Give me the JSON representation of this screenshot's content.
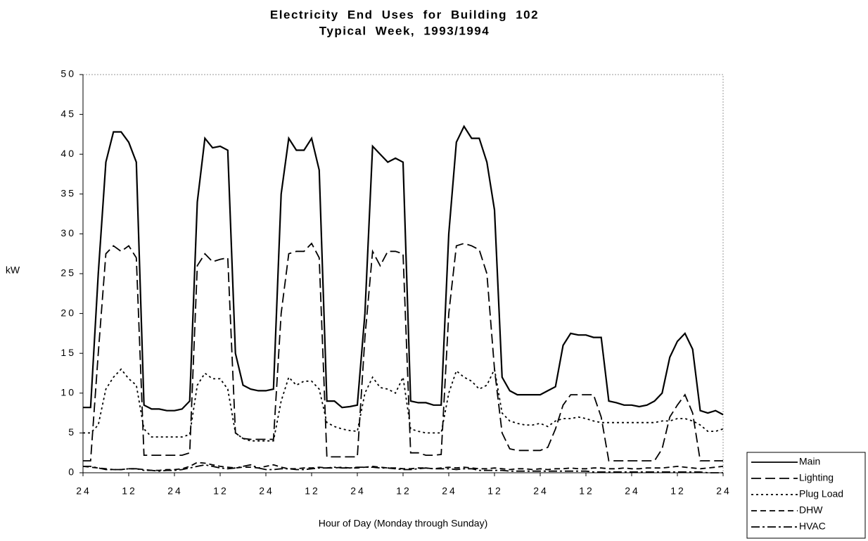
{
  "chart_data": {
    "type": "line",
    "title": "Electricity End Uses for Building 102",
    "subtitle": "Typical Week, 1993/1994",
    "x_label": "Hour of Day (Monday through Sunday)",
    "y_label": "kW",
    "x": [
      0,
      2,
      4,
      6,
      8,
      10,
      12,
      14,
      16,
      18,
      20,
      22,
      24,
      26,
      28,
      30,
      32,
      34,
      36,
      38,
      40,
      42,
      44,
      46,
      48,
      50,
      52,
      54,
      56,
      58,
      60,
      62,
      64,
      66,
      68,
      70,
      72,
      74,
      76,
      78,
      80,
      82,
      84,
      86,
      88,
      90,
      92,
      94,
      96,
      98,
      100,
      102,
      104,
      106,
      108,
      110,
      112,
      114,
      116,
      118,
      120,
      122,
      124,
      126,
      128,
      130,
      132,
      134,
      136,
      138,
      140,
      142,
      144,
      146,
      148,
      150,
      152,
      154,
      156,
      158,
      160,
      162,
      164,
      166,
      168
    ],
    "xlim": [
      0,
      168
    ],
    "xticks": [
      {
        "value": 0,
        "label": "24"
      },
      12,
      24,
      {
        "value": 36,
        "label": "12"
      },
      {
        "value": 48,
        "label": "24"
      },
      {
        "value": 60,
        "label": "12"
      },
      {
        "value": 72,
        "label": "24"
      },
      {
        "value": 84,
        "label": "12"
      },
      {
        "value": 96,
        "label": "24"
      },
      {
        "value": 108,
        "label": "12"
      },
      {
        "value": 120,
        "label": "24"
      },
      {
        "value": 132,
        "label": "12"
      },
      {
        "value": 144,
        "label": "24"
      },
      {
        "value": 156,
        "label": "12"
      },
      {
        "value": 168,
        "label": "24"
      }
    ],
    "ylim": [
      0,
      50
    ],
    "yticks": [
      0,
      5,
      10,
      15,
      20,
      25,
      30,
      35,
      40,
      45,
      50
    ],
    "legend": "lower right",
    "series": [
      {
        "name": "Main",
        "color": "#000000",
        "line_style": "solid",
        "values": [
          8.2,
          8.2,
          25,
          39,
          42.8,
          42.8,
          41.5,
          39,
          8.5,
          8,
          8,
          7.8,
          7.8,
          8,
          9,
          34,
          42,
          40.8,
          41,
          40.5,
          15,
          11,
          10.5,
          10.3,
          10.3,
          10.5,
          35,
          42,
          40.5,
          40.5,
          42,
          38,
          9,
          9,
          8.2,
          8.3,
          8.5,
          20,
          41,
          40,
          39,
          39.5,
          39,
          9,
          8.8,
          8.8,
          8.5,
          8.5,
          30,
          41.5,
          43.5,
          42,
          42,
          39,
          33,
          12,
          10.3,
          9.8,
          9.8,
          9.8,
          9.8,
          10.3,
          10.8,
          16,
          17.5,
          17.3,
          17.3,
          17,
          17,
          9,
          8.8,
          8.5,
          8.5,
          8.3,
          8.5,
          9,
          10,
          14.5,
          16.5,
          17.5,
          15.5,
          7.8,
          7.5,
          7.8,
          7.3
        ]
      },
      {
        "name": "Lighting",
        "color": "#000000",
        "line_style": "longdash",
        "values": [
          1.5,
          1.5,
          15,
          27.5,
          28.5,
          27.8,
          28.5,
          27,
          2.2,
          2.2,
          2.2,
          2.2,
          2.2,
          2.2,
          2.5,
          26,
          27.5,
          26.5,
          26.8,
          27,
          5,
          4.3,
          4.2,
          4.2,
          4.2,
          4.2,
          20,
          27.5,
          27.8,
          27.8,
          28.8,
          27,
          2,
          2,
          2,
          2,
          2,
          17,
          27.8,
          26,
          27.8,
          27.8,
          27.5,
          2.5,
          2.5,
          2.2,
          2.2,
          2.3,
          20,
          28.5,
          28.8,
          28.5,
          28,
          25,
          13,
          5,
          3,
          2.8,
          2.8,
          2.8,
          2.8,
          3.2,
          5.5,
          8.5,
          9.8,
          9.8,
          9.8,
          9.8,
          7,
          1.5,
          1.5,
          1.5,
          1.5,
          1.5,
          1.5,
          1.5,
          3,
          7,
          8.5,
          9.8,
          7.5,
          1.5,
          1.5,
          1.5,
          1.5
        ]
      },
      {
        "name": "Plug Load",
        "color": "#000000",
        "line_style": "dot",
        "values": [
          5,
          5,
          6,
          10.5,
          12,
          13,
          11.8,
          11,
          5.5,
          4.5,
          4.5,
          4.5,
          4.5,
          4.5,
          4.8,
          11,
          12.5,
          11.8,
          11.8,
          10.5,
          5,
          4.3,
          4,
          4,
          4,
          4,
          9,
          12,
          11,
          11.5,
          11.5,
          10.5,
          6.3,
          5.8,
          5.5,
          5.3,
          5.2,
          10,
          12,
          10.7,
          10.5,
          10,
          12,
          5.5,
          5.2,
          5,
          5,
          5,
          10,
          12.8,
          12,
          11.5,
          10.5,
          11,
          13,
          7.5,
          6.5,
          6.2,
          6,
          6,
          6.2,
          5.8,
          6.5,
          6.8,
          6.8,
          7,
          6.8,
          6.5,
          6.3,
          6.3,
          6.3,
          6.3,
          6.3,
          6.3,
          6.3,
          6.3,
          6.5,
          6.5,
          6.8,
          6.8,
          6.5,
          6,
          5.2,
          5.2,
          5.5
        ]
      },
      {
        "name": "DHW",
        "color": "#000000",
        "line_style": "dash",
        "values": [
          0.8,
          0.7,
          0.6,
          0.5,
          0.4,
          0.4,
          0.5,
          0.5,
          0.4,
          0.3,
          0.3,
          0.4,
          0.4,
          0.5,
          0.8,
          1.3,
          1.2,
          1.0,
          0.8,
          0.7,
          0.6,
          0.7,
          0.7,
          0.6,
          0.8,
          1.0,
          0.7,
          0.5,
          0.5,
          0.6,
          0.6,
          0.7,
          0.6,
          0.6,
          0.7,
          0.6,
          0.6,
          0.7,
          0.8,
          0.7,
          0.6,
          0.6,
          0.5,
          0.5,
          0.6,
          0.6,
          0.5,
          0.6,
          0.7,
          0.6,
          0.7,
          0.6,
          0.5,
          0.5,
          0.6,
          0.5,
          0.4,
          0.5,
          0.5,
          0.4,
          0.5,
          0.4,
          0.5,
          0.5,
          0.6,
          0.5,
          0.5,
          0.6,
          0.6,
          0.5,
          0.5,
          0.6,
          0.5,
          0.5,
          0.6,
          0.6,
          0.6,
          0.7,
          0.8,
          0.7,
          0.6,
          0.5,
          0.6,
          0.7,
          0.8
        ]
      },
      {
        "name": "HVAC",
        "color": "#000000",
        "line_style": "dashdot",
        "values": [
          0.8,
          0.8,
          0.6,
          0.4,
          0.4,
          0.4,
          0.5,
          0.5,
          0.3,
          0.3,
          0.2,
          0.3,
          0.3,
          0.4,
          0.6,
          0.8,
          1.0,
          0.8,
          0.6,
          0.5,
          0.6,
          0.8,
          1.0,
          0.6,
          0.4,
          0.4,
          0.5,
          0.5,
          0.4,
          0.4,
          0.5,
          0.6,
          0.6,
          0.7,
          0.6,
          0.6,
          0.7,
          0.7,
          0.7,
          0.6,
          0.6,
          0.5,
          0.4,
          0.4,
          0.5,
          0.6,
          0.5,
          0.5,
          0.5,
          0.4,
          0.5,
          0.5,
          0.3,
          0.3,
          0.3,
          0.3,
          0.2,
          0.2,
          0.2,
          0.2,
          0.2,
          0.2,
          0.2,
          0.2,
          0.2,
          0.2,
          0.2,
          0.1,
          0.1,
          0.1,
          0.1,
          0.1,
          0.1,
          0.1,
          0.1,
          0.1,
          0.1,
          0.1,
          0.1,
          0.1,
          0.1,
          0.1,
          0.0,
          0.0,
          0.0
        ]
      }
    ]
  }
}
